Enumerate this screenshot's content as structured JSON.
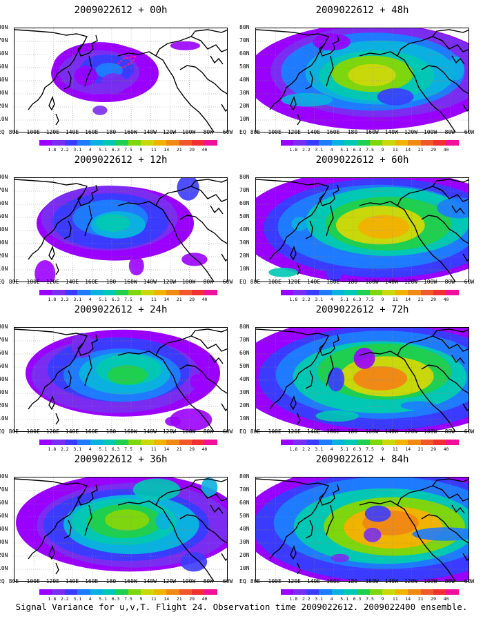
{
  "panels": [
    {
      "title": "2009022612 + 00h",
      "intensity": 0.1
    },
    {
      "title": "2009022612 + 48h",
      "intensity": 0.68
    },
    {
      "title": "2009022612 + 12h",
      "intensity": 0.3
    },
    {
      "title": "2009022612 + 60h",
      "intensity": 0.78
    },
    {
      "title": "2009022612 + 24h",
      "intensity": 0.45
    },
    {
      "title": "2009022612 + 72h",
      "intensity": 0.85
    },
    {
      "title": "2009022612 + 36h",
      "intensity": 0.58
    },
    {
      "title": "2009022612 + 84h",
      "intensity": 0.92
    }
  ],
  "lat_labels": [
    "80N",
    "70N",
    "60N",
    "50N",
    "40N",
    "30N",
    "20N",
    "10N",
    "EQ"
  ],
  "lon_labels": [
    "80E",
    "100E",
    "120E",
    "140E",
    "160E",
    "180",
    "160W",
    "140W",
    "120W",
    "100W",
    "80W",
    "60W"
  ],
  "colorbar": {
    "levels": [
      "1.8",
      "2.2",
      "3.1",
      "4",
      "5.1",
      "6.3",
      "7.5",
      "9",
      "11",
      "14",
      "21",
      "29",
      "40"
    ],
    "colors": [
      "#9a00ff",
      "#7a2cf0",
      "#3b3bff",
      "#1e7bff",
      "#0ab0e0",
      "#00c8b4",
      "#1ecf50",
      "#7ed60e",
      "#c8d80a",
      "#f0b400",
      "#f08a14",
      "#f0582a",
      "#f03030",
      "#f0109a"
    ]
  },
  "footer": "Signal Variance for u,v,T. Flight 24. Observation time 2009022612. 2009022400 ensemble."
}
